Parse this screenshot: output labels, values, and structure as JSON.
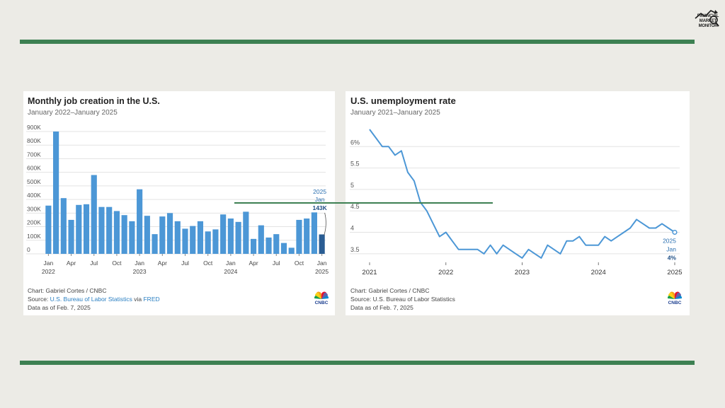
{
  "logo": {
    "text": [
      "FINANCIAL",
      "MARKET",
      "MONITOR"
    ]
  },
  "colors": {
    "accent_green": "#3d8052",
    "bar_blue": "#4c97d6",
    "bar_highlight": "#2a5d93",
    "line_blue": "#4c97d6"
  },
  "chart_data": [
    {
      "type": "bar",
      "title": "Monthly job creation in the U.S.",
      "subtitle": "January 2022–January 2025",
      "ylim": [
        0,
        900
      ],
      "yticks": [
        0,
        100,
        200,
        300,
        400,
        500,
        600,
        700,
        800,
        900
      ],
      "ytick_labels": [
        "0",
        "100K",
        "200K",
        "300K",
        "400K",
        "500K",
        "600K",
        "700K",
        "800K",
        "900K"
      ],
      "value_unit": "thousands",
      "categories": [
        "Jan 2022",
        "Feb 2022",
        "Mar 2022",
        "Apr 2022",
        "May 2022",
        "Jun 2022",
        "Jul 2022",
        "Aug 2022",
        "Sep 2022",
        "Oct 2022",
        "Nov 2022",
        "Dec 2022",
        "Jan 2023",
        "Feb 2023",
        "Mar 2023",
        "Apr 2023",
        "May 2023",
        "Jun 2023",
        "Jul 2023",
        "Aug 2023",
        "Sep 2023",
        "Oct 2023",
        "Nov 2023",
        "Dec 2023",
        "Jan 2024",
        "Feb 2024",
        "Mar 2024",
        "Apr 2024",
        "May 2024",
        "Jun 2024",
        "Jul 2024",
        "Aug 2024",
        "Sep 2024",
        "Oct 2024",
        "Nov 2024",
        "Dec 2024",
        "Jan 2025"
      ],
      "values": [
        355,
        900,
        410,
        250,
        360,
        365,
        580,
        345,
        345,
        315,
        285,
        240,
        475,
        280,
        145,
        275,
        300,
        240,
        185,
        205,
        240,
        165,
        180,
        290,
        260,
        235,
        310,
        110,
        210,
        120,
        145,
        80,
        45,
        250,
        260,
        305,
        143
      ],
      "highlight_index": 36,
      "xtick_labels": [
        {
          "index": 0,
          "top": "Jan",
          "bottom": "2022"
        },
        {
          "index": 3,
          "top": "Apr",
          "bottom": ""
        },
        {
          "index": 6,
          "top": "Jul",
          "bottom": ""
        },
        {
          "index": 9,
          "top": "Oct",
          "bottom": ""
        },
        {
          "index": 12,
          "top": "Jan",
          "bottom": "2023"
        },
        {
          "index": 15,
          "top": "Apr",
          "bottom": ""
        },
        {
          "index": 18,
          "top": "Jul",
          "bottom": ""
        },
        {
          "index": 21,
          "top": "Oct",
          "bottom": ""
        },
        {
          "index": 24,
          "top": "Jan",
          "bottom": "2024"
        },
        {
          "index": 27,
          "top": "Apr",
          "bottom": ""
        },
        {
          "index": 30,
          "top": "Jul",
          "bottom": ""
        },
        {
          "index": 33,
          "top": "Oct",
          "bottom": ""
        },
        {
          "index": 36,
          "top": "Jan",
          "bottom": "2025"
        }
      ],
      "annotation": {
        "year": "2025",
        "month": "Jan",
        "value": "143K"
      }
    },
    {
      "type": "line",
      "title": "U.S. unemployment rate",
      "subtitle": "January 2021–January 2025",
      "ylim": [
        3.3,
        6.4
      ],
      "yticks": [
        3.5,
        4,
        4.5,
        5,
        5.5,
        6
      ],
      "ytick_labels": [
        "3.5",
        "4",
        "4.5",
        "5",
        "5.5",
        "6%"
      ],
      "xtick_labels": [
        "2021",
        "2022",
        "2023",
        "2024",
        "2025"
      ],
      "xlim": [
        "2021-01",
        "2025-01"
      ],
      "x": [
        "2021-01",
        "2021-02",
        "2021-03",
        "2021-04",
        "2021-05",
        "2021-06",
        "2021-07",
        "2021-08",
        "2021-09",
        "2021-10",
        "2021-11",
        "2021-12",
        "2022-01",
        "2022-02",
        "2022-03",
        "2022-04",
        "2022-05",
        "2022-06",
        "2022-07",
        "2022-08",
        "2022-09",
        "2022-10",
        "2022-11",
        "2022-12",
        "2023-01",
        "2023-02",
        "2023-03",
        "2023-04",
        "2023-05",
        "2023-06",
        "2023-07",
        "2023-08",
        "2023-09",
        "2023-10",
        "2023-11",
        "2023-12",
        "2024-01",
        "2024-02",
        "2024-03",
        "2024-04",
        "2024-05",
        "2024-06",
        "2024-07",
        "2024-08",
        "2024-09",
        "2024-10",
        "2024-11",
        "2024-12",
        "2025-01"
      ],
      "y": [
        6.4,
        6.2,
        6.0,
        6.0,
        5.8,
        5.9,
        5.4,
        5.2,
        4.7,
        4.5,
        4.2,
        3.9,
        4.0,
        3.8,
        3.6,
        3.6,
        3.6,
        3.6,
        3.5,
        3.7,
        3.5,
        3.7,
        3.6,
        3.5,
        3.4,
        3.6,
        3.5,
        3.4,
        3.7,
        3.6,
        3.5,
        3.8,
        3.8,
        3.9,
        3.7,
        3.7,
        3.7,
        3.9,
        3.8,
        3.9,
        4.0,
        4.1,
        4.3,
        4.2,
        4.1,
        4.1,
        4.2,
        4.1,
        4.0
      ],
      "annotation": {
        "year": "2025",
        "month": "Jan",
        "value": "4%"
      }
    }
  ],
  "card1": {
    "footer": {
      "line1": "Chart: Gabriel Cortes / CNBC",
      "source_prefix": "Source: ",
      "source_link": "U.S. Bureau of Labor Statistics",
      "source_mid": " via ",
      "source_link2": "FRED",
      "line3": "Data as of Feb. 7, 2025"
    },
    "cnbc": "CNBC"
  },
  "card2": {
    "footer": {
      "line1": "Chart: Gabriel Cortes / CNBC",
      "line2": "Source: U.S. Bureau of Labor Statistics",
      "line3": "Data as of Feb. 7, 2025"
    },
    "cnbc": "CNBC"
  }
}
